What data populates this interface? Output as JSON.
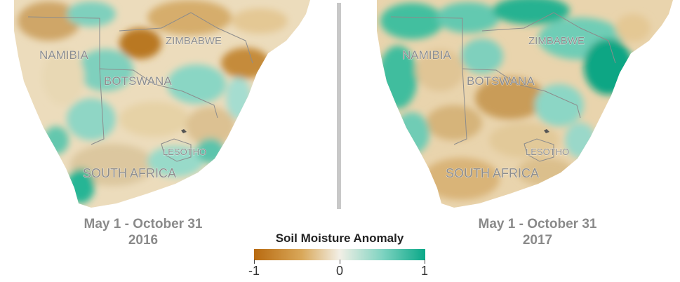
{
  "maps": [
    {
      "period": "May 1 - October 31",
      "year": "2016",
      "labels": {
        "namibia": "NAMIBIA",
        "zimbabwe": "ZIMBABWE",
        "botswana": "BOTSWANA",
        "lesotho": "LESOTHO",
        "south_africa": "SOUTH AFRICA"
      }
    },
    {
      "period": "May 1 - October 31",
      "year": "2017",
      "labels": {
        "namibia": "NAMIBIA",
        "zimbabwe": "ZIMBABWE",
        "botswana": "BOTSWANA",
        "lesotho": "LESOTHO",
        "south_africa": "SOUTH AFRICA"
      }
    }
  ],
  "legend": {
    "title": "Soil Moisture Anomaly",
    "min_label": "-1",
    "mid_label": "0",
    "max_label": "1",
    "colors": {
      "dry": "#b86a10",
      "neutral": "#f2efe6",
      "wet": "#0aa888"
    }
  },
  "colors": {
    "caption": "#8a8a8a",
    "divider": "#c8c8c8",
    "border": "#8c8c8c"
  }
}
